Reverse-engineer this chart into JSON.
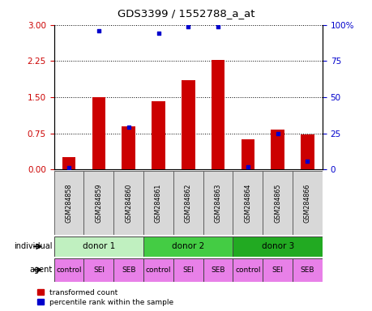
{
  "title": "GDS3399 / 1552788_a_at",
  "samples": [
    "GSM284858",
    "GSM284859",
    "GSM284860",
    "GSM284861",
    "GSM284862",
    "GSM284863",
    "GSM284864",
    "GSM284865",
    "GSM284866"
  ],
  "red_values": [
    0.25,
    1.5,
    0.9,
    1.42,
    1.85,
    2.28,
    0.62,
    0.82,
    0.72
  ],
  "blue_pct": [
    1,
    96,
    29,
    94,
    99,
    99,
    2,
    25,
    6
  ],
  "ylim_left": [
    0,
    3
  ],
  "ylim_right": [
    0,
    100
  ],
  "yticks_left": [
    0,
    0.75,
    1.5,
    2.25,
    3
  ],
  "yticks_right": [
    0,
    25,
    50,
    75,
    100
  ],
  "individuals": [
    {
      "label": "donor 1",
      "span": [
        0,
        3
      ],
      "color": "#c0f0c0"
    },
    {
      "label": "donor 2",
      "span": [
        3,
        6
      ],
      "color": "#44cc44"
    },
    {
      "label": "donor 3",
      "span": [
        6,
        9
      ],
      "color": "#22aa22"
    }
  ],
  "agents": [
    "control",
    "SEI",
    "SEB",
    "control",
    "SEI",
    "SEB",
    "control",
    "SEI",
    "SEB"
  ],
  "agent_color": "#e880e8",
  "bar_color": "#cc0000",
  "dot_color": "#0000cc",
  "bg_color": "#d8d8d8",
  "left_tick_color": "#cc0000",
  "right_tick_color": "#0000cc",
  "legend_red": "transformed count",
  "legend_blue": "percentile rank within the sample"
}
